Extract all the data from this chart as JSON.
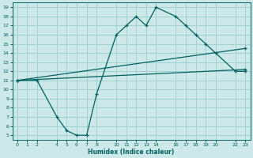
{
  "xlabel": "Humidex (Indice chaleur)",
  "ylabel": "",
  "bg_color": "#cce8e8",
  "grid_color": "#99cccc",
  "line_color": "#005f5f",
  "xlim": [
    -0.5,
    23.5
  ],
  "ylim": [
    4.5,
    19.5
  ],
  "xticks": [
    0,
    1,
    2,
    4,
    5,
    6,
    7,
    8,
    10,
    11,
    12,
    13,
    14,
    16,
    17,
    18,
    19,
    20,
    22,
    23
  ],
  "yticks": [
    5,
    6,
    7,
    8,
    9,
    10,
    11,
    12,
    13,
    14,
    15,
    16,
    17,
    18,
    19
  ],
  "curve1_x": [
    0,
    2,
    4,
    5,
    6,
    7,
    8,
    10,
    11,
    12,
    13,
    14,
    16,
    17,
    18,
    19,
    20,
    22,
    23
  ],
  "curve1_y": [
    11,
    11,
    7,
    5.5,
    5,
    5,
    9.5,
    16,
    17,
    18,
    17,
    19,
    18,
    17,
    16,
    15,
    14,
    12,
    12
  ],
  "curve2_x": [
    0,
    23
  ],
  "curve2_y": [
    11,
    14.5
  ],
  "curve3_x": [
    0,
    23
  ],
  "curve3_y": [
    11,
    12.2
  ],
  "figsize": [
    3.2,
    2.0
  ],
  "dpi": 100
}
